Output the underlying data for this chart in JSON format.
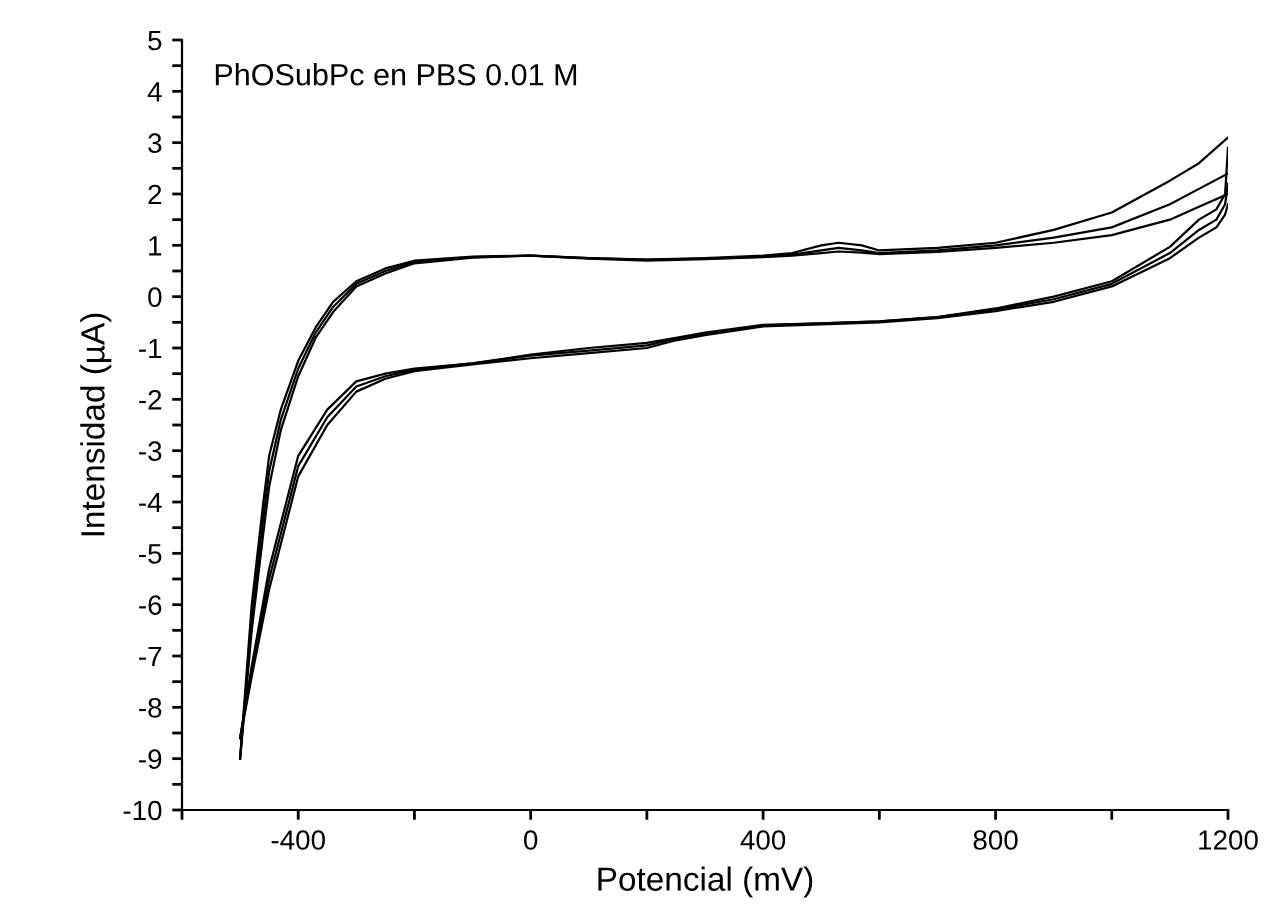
{
  "chart_data": {
    "type": "line",
    "title": "PhOSubPc en PBS 0.01 M",
    "xlabel": "Potencial (mV)",
    "ylabel": "Intensidad (µA)",
    "xlim": [
      -600,
      1200
    ],
    "ylim": [
      -10,
      5
    ],
    "xticks": [
      {
        "value": -600,
        "label": null
      },
      -400,
      {
        "value": -200,
        "label": null
      },
      0,
      {
        "value": 200,
        "label": null
      },
      400,
      {
        "value": 600,
        "label": null
      },
      800,
      {
        "value": 1000,
        "label": null
      },
      1200
    ],
    "yticks": [
      -10,
      {
        "value": -9.5,
        "label": null
      },
      -9,
      {
        "value": -8.5,
        "label": null
      },
      -8,
      {
        "value": -7.5,
        "label": null
      },
      -7,
      {
        "value": -6.5,
        "label": null
      },
      -6,
      {
        "value": -5.5,
        "label": null
      },
      -5,
      {
        "value": -4.5,
        "label": null
      },
      -4,
      {
        "value": -3.5,
        "label": null
      },
      -3,
      {
        "value": -2.5,
        "label": null
      },
      -2,
      {
        "value": -1.5,
        "label": null
      },
      -1,
      {
        "value": -0.5,
        "label": null
      },
      0,
      {
        "value": 0.5,
        "label": null
      },
      1,
      {
        "value": 1.5,
        "label": null
      },
      2,
      {
        "value": 2.5,
        "label": null
      },
      3,
      {
        "value": 3.5,
        "label": null
      },
      4,
      {
        "value": 4.5,
        "label": null
      },
      5
    ],
    "grid": false,
    "marker": "none",
    "line_style": "solid",
    "series": [
      {
        "color": "#000000",
        "x": [
          -500,
          -480,
          -460,
          -450,
          -430,
          -400,
          -370,
          -340,
          -300,
          -250,
          -200,
          -100,
          0,
          100,
          200,
          300,
          400,
          450,
          500,
          530,
          570,
          600,
          700,
          800,
          900,
          1000,
          1100,
          1150,
          1200
        ],
        "values": [
          -9,
          -6,
          -4,
          -3.1,
          -2.2,
          -1.25,
          -0.6,
          -0.1,
          0.3,
          0.55,
          0.7,
          0.78,
          0.8,
          0.75,
          0.72,
          0.75,
          0.8,
          0.85,
          1.0,
          1.05,
          1.0,
          0.9,
          0.95,
          1.05,
          1.3,
          1.64,
          2.26,
          2.6,
          3.1
        ]
      },
      {
        "color": "#000000",
        "x": [
          -500,
          -480,
          -450,
          -400,
          -350,
          -300,
          -250,
          -200,
          -100,
          0,
          100,
          200,
          250,
          300,
          400,
          500,
          600,
          700,
          800,
          900,
          1000,
          1100,
          1150,
          1180,
          1195,
          1200
        ],
        "values": [
          -8.6,
          -7.2,
          -5.3,
          -3.1,
          -2.2,
          -1.65,
          -1.5,
          -1.4,
          -1.3,
          -1.13,
          -1.0,
          -0.9,
          -0.8,
          -0.7,
          -0.55,
          -0.52,
          -0.48,
          -0.4,
          -0.23,
          0.0,
          0.3,
          0.97,
          1.5,
          1.7,
          2.0,
          2.9
        ]
      },
      {
        "color": "#000000",
        "x": [
          -500,
          -480,
          -460,
          -450,
          -430,
          -400,
          -370,
          -340,
          -300,
          -250,
          -200,
          -100,
          0,
          100,
          200,
          300,
          400,
          450,
          500,
          530,
          570,
          600,
          700,
          800,
          900,
          1000,
          1100,
          1150,
          1200
        ],
        "values": [
          -9,
          -6.3,
          -4.3,
          -3.4,
          -2.4,
          -1.4,
          -0.7,
          -0.2,
          0.25,
          0.5,
          0.68,
          0.77,
          0.8,
          0.75,
          0.72,
          0.74,
          0.78,
          0.82,
          0.9,
          0.95,
          0.9,
          0.85,
          0.9,
          1.0,
          1.15,
          1.35,
          1.8,
          2.1,
          2.4
        ]
      },
      {
        "color": "#000000",
        "x": [
          -500,
          -480,
          -450,
          -400,
          -350,
          -300,
          -250,
          -200,
          -100,
          0,
          100,
          200,
          250,
          300,
          400,
          500,
          600,
          700,
          800,
          900,
          1000,
          1100,
          1150,
          1180,
          1195,
          1200
        ],
        "values": [
          -8.6,
          -7.3,
          -5.5,
          -3.3,
          -2.35,
          -1.75,
          -1.55,
          -1.42,
          -1.3,
          -1.15,
          -1.05,
          -0.95,
          -0.82,
          -0.72,
          -0.56,
          -0.52,
          -0.48,
          -0.4,
          -0.25,
          -0.05,
          0.25,
          0.85,
          1.3,
          1.5,
          1.8,
          2.2
        ]
      },
      {
        "color": "#000000",
        "x": [
          -500,
          -480,
          -460,
          -450,
          -430,
          -400,
          -370,
          -340,
          -300,
          -250,
          -200,
          -100,
          0,
          100,
          200,
          300,
          400,
          450,
          500,
          530,
          570,
          600,
          700,
          800,
          900,
          1000,
          1100,
          1150,
          1200
        ],
        "values": [
          -9,
          -6.5,
          -4.6,
          -3.7,
          -2.6,
          -1.55,
          -0.8,
          -0.3,
          0.2,
          0.45,
          0.65,
          0.76,
          0.8,
          0.74,
          0.7,
          0.73,
          0.77,
          0.8,
          0.85,
          0.88,
          0.86,
          0.83,
          0.87,
          0.95,
          1.05,
          1.2,
          1.5,
          1.75,
          2.0
        ]
      },
      {
        "color": "#000000",
        "x": [
          -500,
          -480,
          -450,
          -400,
          -350,
          -300,
          -250,
          -200,
          -100,
          0,
          100,
          200,
          250,
          300,
          400,
          500,
          600,
          700,
          800,
          900,
          1000,
          1100,
          1150,
          1180,
          1195,
          1200
        ],
        "values": [
          -8.6,
          -7.4,
          -5.7,
          -3.5,
          -2.5,
          -1.85,
          -1.6,
          -1.45,
          -1.32,
          -1.2,
          -1.1,
          -1.0,
          -0.85,
          -0.75,
          -0.58,
          -0.54,
          -0.5,
          -0.42,
          -0.28,
          -0.1,
          0.2,
          0.75,
          1.15,
          1.35,
          1.6,
          1.8
        ]
      }
    ]
  }
}
